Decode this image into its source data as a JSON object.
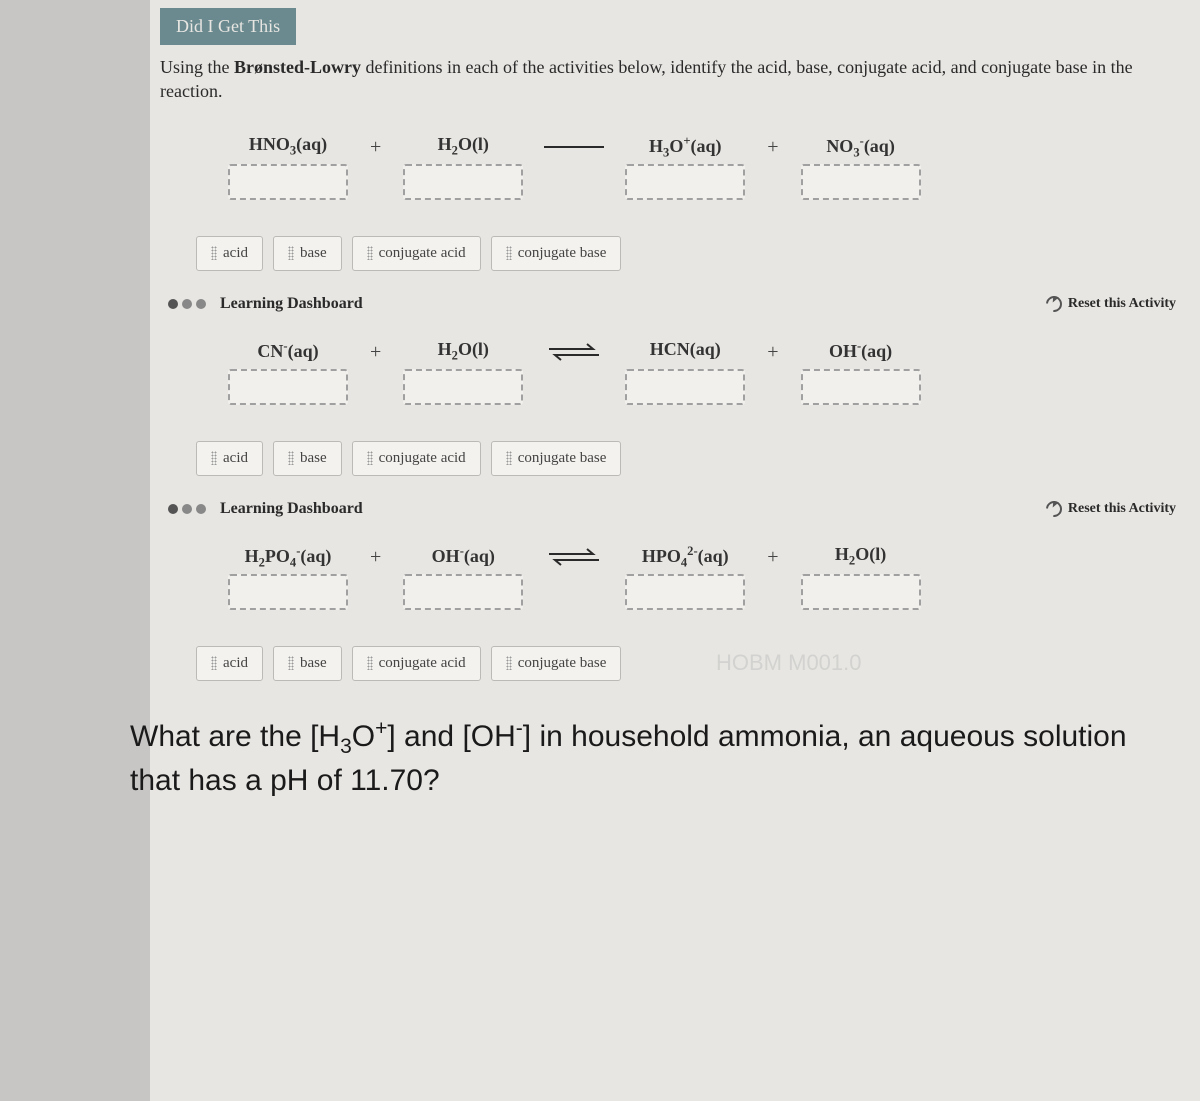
{
  "header_tab": "Did I Get This",
  "instructions_html": "Using the <b>Brønsted-Lowry</b> definitions in each of the activities below, identify the acid, base, conjugate acid, and conjugate base in the reaction.",
  "labels": [
    "acid",
    "base",
    "conjugate acid",
    "conjugate base"
  ],
  "section_label": "Learning Dashboard",
  "reset_label": "Reset this Activity",
  "activities": [
    {
      "arrow": "forward",
      "species": [
        {
          "html": "HNO<sub>3</sub>(aq)"
        },
        {
          "html": "H<sub>2</sub>O(l)"
        },
        {
          "html": "H<sub>3</sub>O<sup>+</sup>(aq)"
        },
        {
          "html": "NO<sub>3</sub><sup>-</sup>(aq)"
        }
      ]
    },
    {
      "arrow": "equilibrium",
      "species": [
        {
          "html": "CN<sup>-</sup>(aq)"
        },
        {
          "html": "H<sub>2</sub>O(l)"
        },
        {
          "html": "HCN(aq)"
        },
        {
          "html": "OH<sup>-</sup>(aq)"
        }
      ]
    },
    {
      "arrow": "equilibrium",
      "species": [
        {
          "html": "H<sub>2</sub>PO<sub>4</sub><sup>-</sup>(aq)"
        },
        {
          "html": "OH<sup>-</sup>(aq)"
        },
        {
          "html": "HPO<sub>4</sub><sup>2-</sup>(aq)"
        },
        {
          "html": "H<sub>2</sub>O(l)"
        }
      ]
    }
  ],
  "ghost1": "HOBM M001.0",
  "ghost2": "",
  "question_html": "What are the [H<sub>3</sub>O<sup>+</sup>] and [OH<sup>-</sup>] in household ammonia, an aqueous solution that has a pH of 11.70?",
  "colors": {
    "page_bg": "#e8e6e2",
    "body_bg": "#c8c6c4",
    "tab_bg": "#6a8a8f",
    "chip_border": "#bcbab6",
    "drop_border": "#a0a0a0"
  }
}
